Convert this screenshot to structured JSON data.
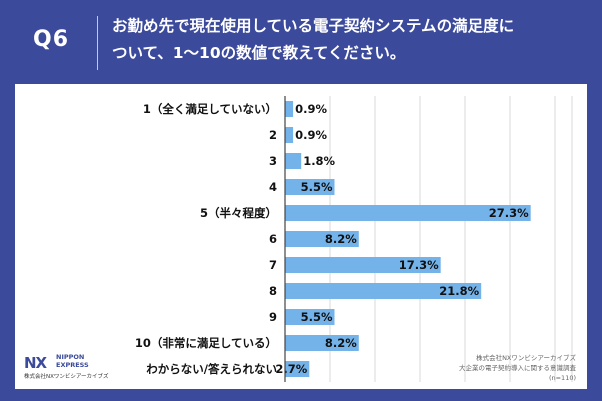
{
  "header": {
    "q_label": "Q6",
    "question_line1": "お勤め先で現在使用している電子契約システムの満足度に",
    "question_line2": "ついて、1〜10の数値で教えてください。"
  },
  "colors": {
    "header_bg": "#3b4a9a",
    "bar": "#74b3ea",
    "label_text": "#111111",
    "grid": "#cfcfcf"
  },
  "chart_data": {
    "type": "bar",
    "orientation": "horizontal",
    "categories": [
      "1（全く満足していない）",
      "2",
      "3",
      "4",
      "5（半々程度）",
      "6",
      "7",
      "8",
      "9",
      "10（非常に満足している）",
      "わからない/答えられない"
    ],
    "values": [
      0.9,
      0.9,
      1.8,
      5.5,
      27.3,
      8.2,
      17.3,
      21.8,
      5.5,
      8.2,
      2.7
    ],
    "value_labels": [
      "0.9%",
      "0.9%",
      "1.8%",
      "5.5%",
      "27.3%",
      "8.2%",
      "17.3%",
      "21.8%",
      "5.5%",
      "8.2%",
      "2.7%"
    ],
    "unit": "%",
    "xlim": [
      0,
      30
    ],
    "grid": true
  },
  "logo": {
    "mark_nx": "NX",
    "name_line1": "NIPPON",
    "name_line2": "EXPRESS",
    "company": "株式会社NXワンビシアーカイブズ"
  },
  "source": {
    "line1": "株式会社NXワンビシアーカイブズ",
    "line2": "大企業の電子契約導入に関する意識調査",
    "line3": "(n=110)"
  }
}
